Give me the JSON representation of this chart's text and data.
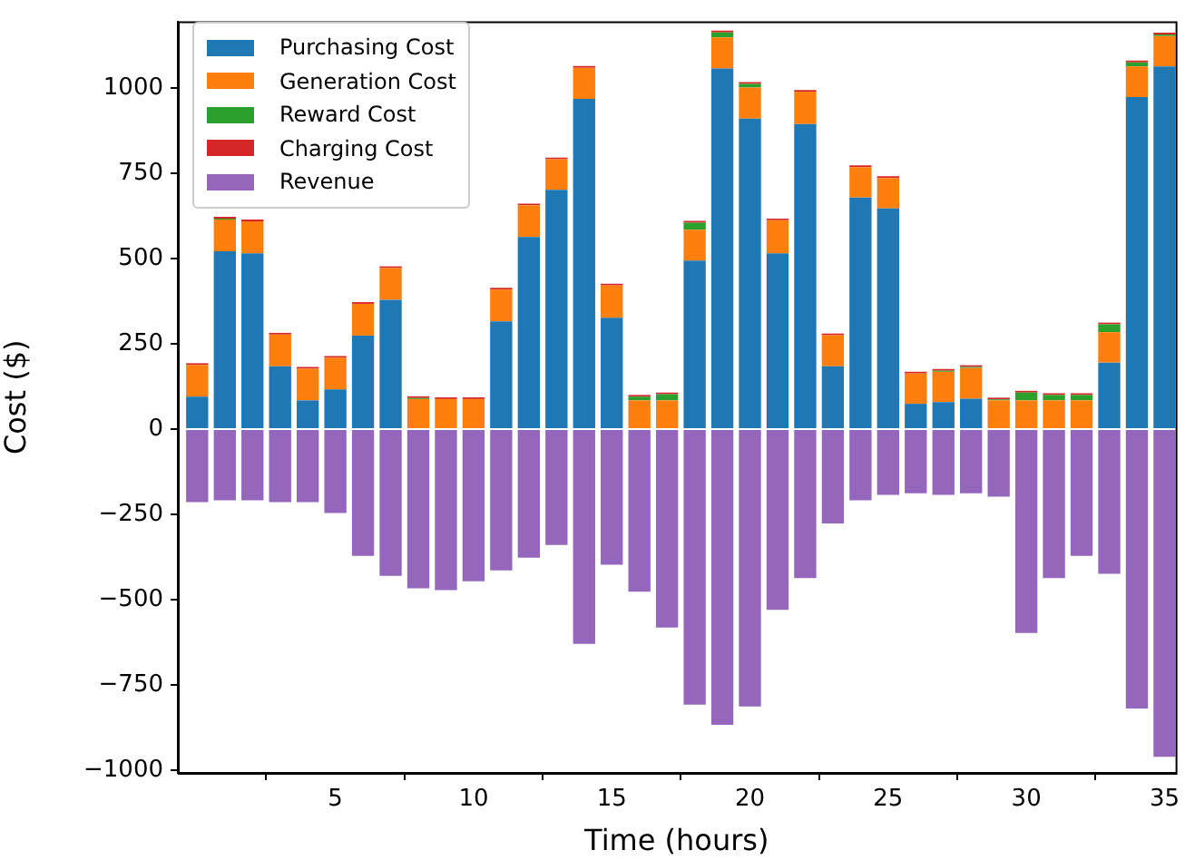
{
  "chart_data": {
    "type": "bar",
    "stacked": true,
    "xlabel": "Time (hours)",
    "ylabel": "Cost ($)",
    "x": [
      0,
      1,
      2,
      3,
      4,
      5,
      6,
      7,
      8,
      9,
      10,
      11,
      12,
      13,
      14,
      15,
      16,
      17,
      18,
      19,
      20,
      21,
      22,
      23,
      24,
      25,
      26,
      27,
      28,
      29,
      30,
      31,
      32,
      33,
      34,
      35
    ],
    "xlim": [
      -0.7,
      35.4
    ],
    "xticks": [
      5,
      10,
      15,
      20,
      25,
      30,
      35
    ],
    "ylim": [
      -1008,
      1195
    ],
    "yticks": [
      -1000,
      -750,
      -500,
      -250,
      0,
      250,
      500,
      750,
      1000
    ],
    "grid": false,
    "legend": "top left",
    "series": [
      {
        "name": "Purchasing Cost",
        "color": "#1f77b4",
        "values": [
          95,
          521,
          515,
          184,
          84,
          116,
          274,
          379,
          0,
          0,
          0,
          316,
          563,
          701,
          968,
          326,
          0,
          0,
          494,
          1057,
          910,
          515,
          894,
          184,
          679,
          647,
          74,
          79,
          89,
          0,
          0,
          0,
          0,
          195,
          973,
          1063
        ]
      },
      {
        "name": "Generation Cost",
        "color": "#ff7f0e",
        "values": [
          93,
          93,
          94,
          93,
          93,
          93,
          93,
          93,
          88,
          88,
          88,
          93,
          93,
          90,
          91,
          95,
          84,
          84,
          90,
          91,
          91,
          97,
          95,
          91,
          89,
          89,
          89,
          89,
          90,
          84,
          84,
          84,
          84,
          89,
          90,
          89
        ]
      },
      {
        "name": "Reward Cost",
        "color": "#2ca02c",
        "values": [
          0,
          3,
          0,
          0,
          0,
          0,
          0,
          0,
          3,
          0,
          0,
          0,
          0,
          0,
          0,
          0,
          11,
          18,
          21,
          15,
          11,
          0,
          0,
          0,
          0,
          0,
          0,
          3,
          3,
          3,
          23,
          16,
          16,
          23,
          12,
          5
        ]
      },
      {
        "name": "Charging Cost",
        "color": "#d62728",
        "values": [
          5,
          5,
          5,
          5,
          5,
          5,
          5,
          5,
          5,
          5,
          5,
          5,
          5,
          5,
          5,
          5,
          5,
          5,
          5,
          5,
          5,
          5,
          5,
          5,
          5,
          5,
          5,
          5,
          5,
          5,
          5,
          5,
          5,
          5,
          5,
          5
        ]
      },
      {
        "name": "Revenue",
        "color": "#9467bd",
        "values": [
          -214,
          -209,
          -209,
          -214,
          -214,
          -246,
          -372,
          -430,
          -467,
          -472,
          -446,
          -414,
          -377,
          -340,
          -630,
          -398,
          -477,
          -582,
          -808,
          -867,
          -813,
          -530,
          -437,
          -277,
          -209,
          -193,
          -188,
          -193,
          -188,
          -198,
          -598,
          -437,
          -372,
          -424,
          -819,
          -961
        ]
      }
    ]
  }
}
